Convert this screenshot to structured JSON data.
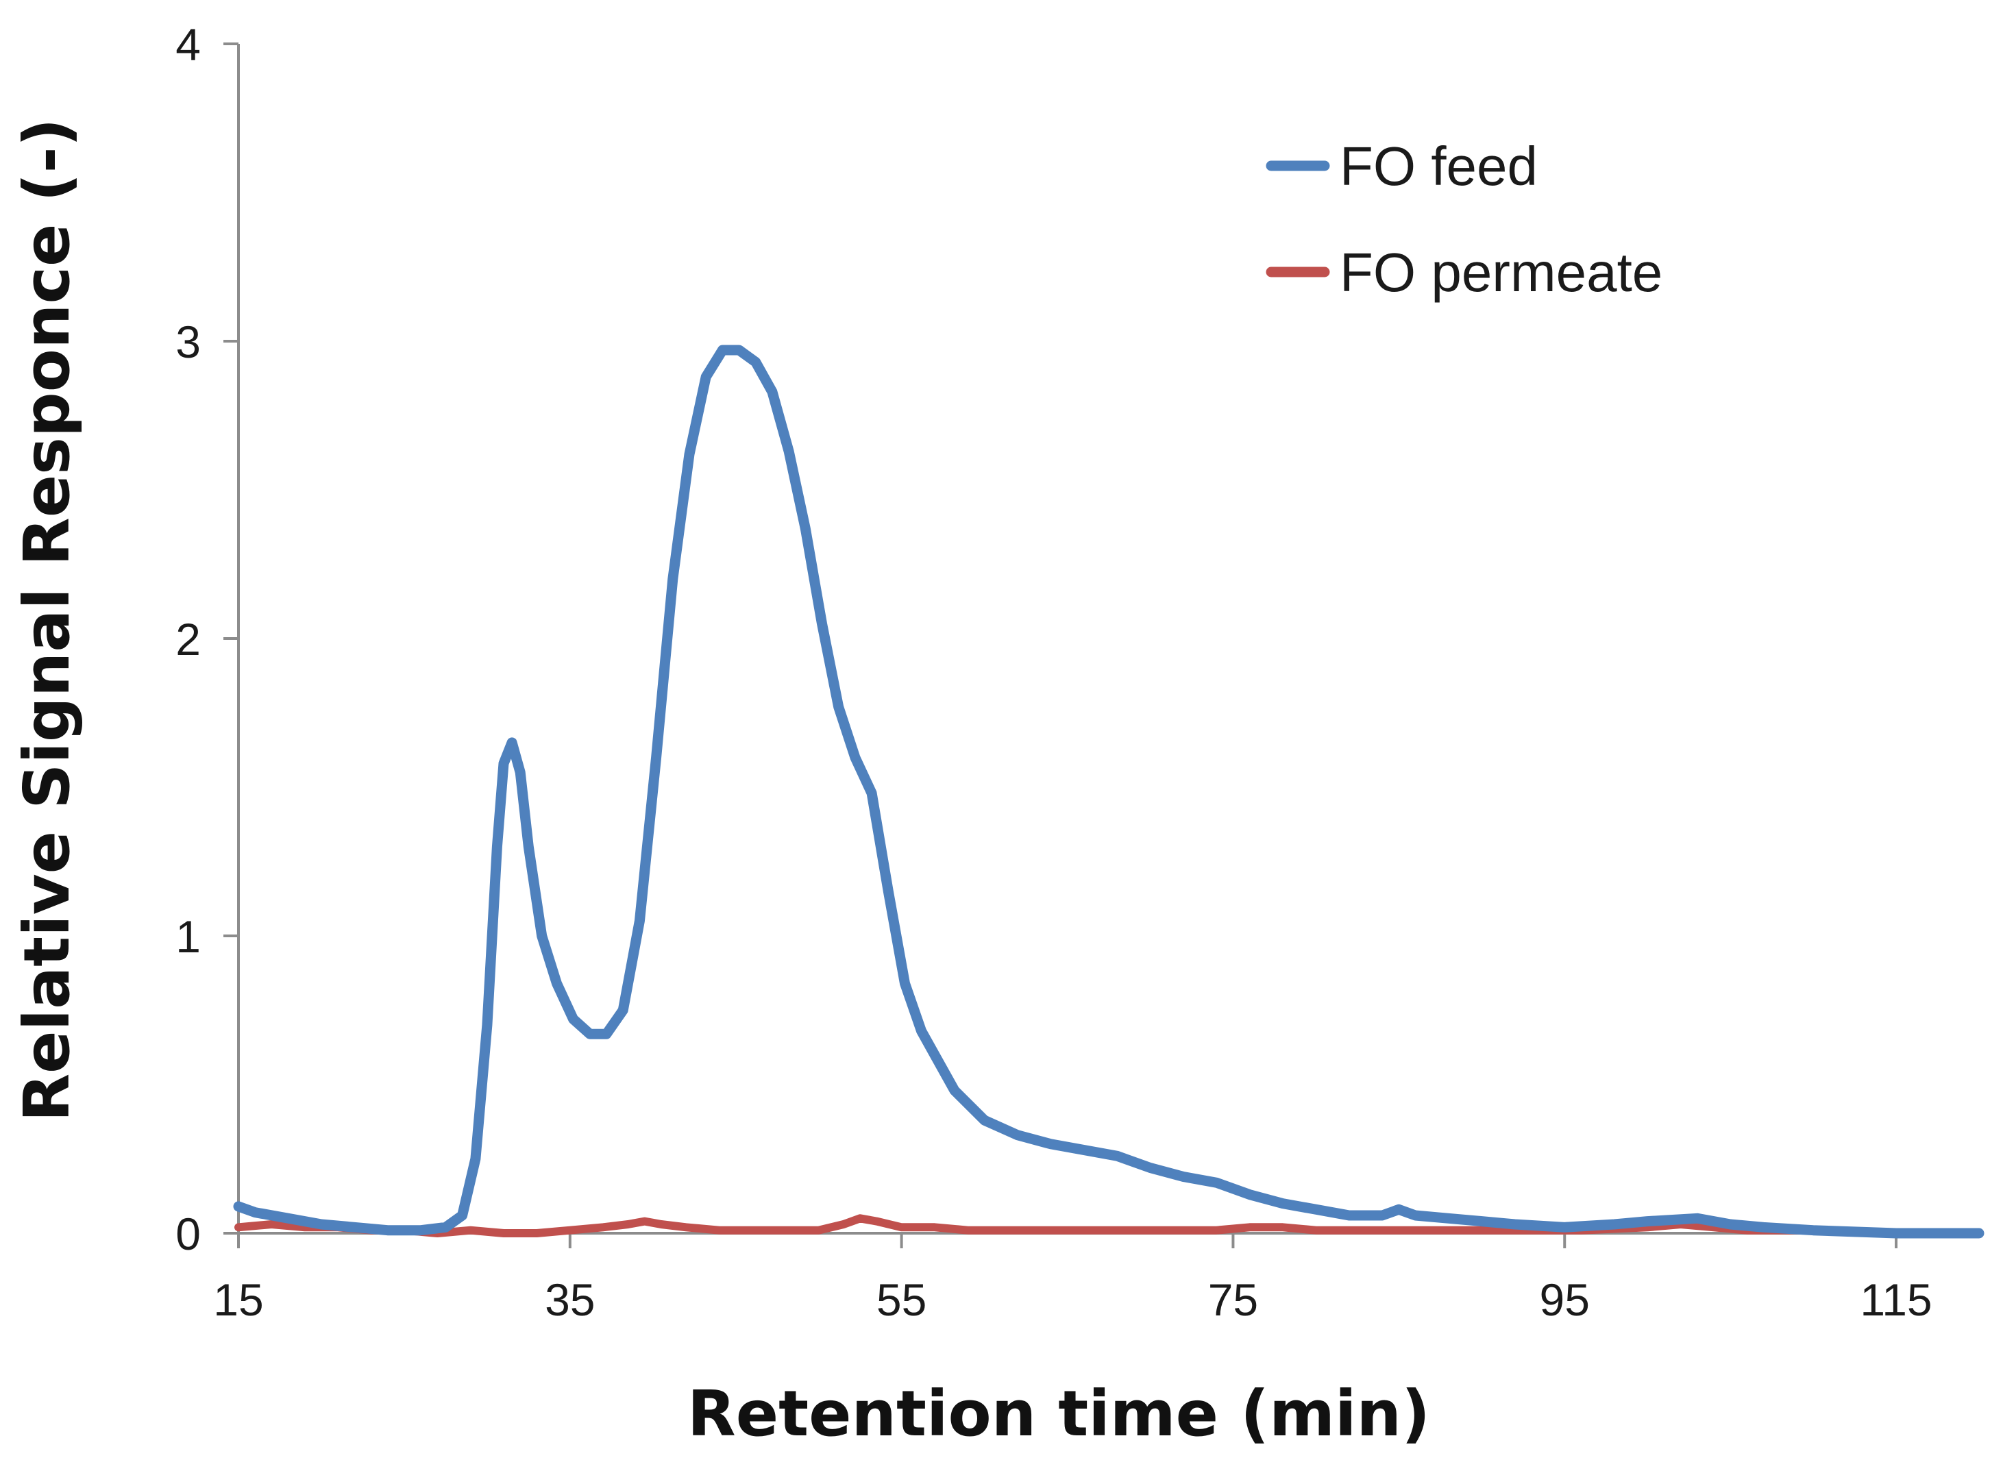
{
  "chart_data": {
    "type": "line",
    "title": "",
    "xlabel": "Retention time (min)",
    "ylabel": "Relative Signal Responce (-)",
    "xlim": [
      15,
      120
    ],
    "ylim": [
      0,
      4
    ],
    "x_ticks": [
      15,
      35,
      55,
      75,
      95,
      115
    ],
    "y_ticks": [
      0,
      1,
      2,
      3,
      4
    ],
    "x_tick_labels": [
      "15",
      "35",
      "55",
      "75",
      "95",
      "115"
    ],
    "y_tick_labels": [
      "0",
      "1",
      "2",
      "3",
      "4"
    ],
    "grid": false,
    "legend_position": "top-right",
    "series": [
      {
        "name": "FO feed",
        "color": "#4f81bd",
        "points": [
          [
            15,
            0.09
          ],
          [
            16,
            0.07
          ],
          [
            18,
            0.05
          ],
          [
            20,
            0.03
          ],
          [
            22,
            0.02
          ],
          [
            24,
            0.01
          ],
          [
            26,
            0.01
          ],
          [
            27.5,
            0.02
          ],
          [
            28.5,
            0.06
          ],
          [
            29.3,
            0.25
          ],
          [
            30,
            0.7
          ],
          [
            30.6,
            1.3
          ],
          [
            31,
            1.58
          ],
          [
            31.5,
            1.65
          ],
          [
            32,
            1.55
          ],
          [
            32.5,
            1.3
          ],
          [
            33.3,
            1.0
          ],
          [
            34.2,
            0.84
          ],
          [
            35.2,
            0.72
          ],
          [
            36.2,
            0.67
          ],
          [
            37.2,
            0.67
          ],
          [
            38.2,
            0.75
          ],
          [
            39.2,
            1.05
          ],
          [
            40.2,
            1.6
          ],
          [
            41.2,
            2.2
          ],
          [
            42.2,
            2.62
          ],
          [
            43.2,
            2.88
          ],
          [
            44.2,
            2.97
          ],
          [
            45.2,
            2.97
          ],
          [
            46.2,
            2.93
          ],
          [
            47.2,
            2.83
          ],
          [
            48.2,
            2.63
          ],
          [
            49.2,
            2.37
          ],
          [
            50.2,
            2.05
          ],
          [
            51.2,
            1.77
          ],
          [
            52.2,
            1.6
          ],
          [
            53.2,
            1.48
          ],
          [
            54.2,
            1.15
          ],
          [
            55.2,
            0.84
          ],
          [
            56.2,
            0.68
          ],
          [
            57.2,
            0.58
          ],
          [
            58.2,
            0.48
          ],
          [
            60,
            0.38
          ],
          [
            62,
            0.33
          ],
          [
            64,
            0.3
          ],
          [
            66,
            0.28
          ],
          [
            68,
            0.26
          ],
          [
            70,
            0.22
          ],
          [
            72,
            0.19
          ],
          [
            74,
            0.17
          ],
          [
            76,
            0.13
          ],
          [
            78,
            0.1
          ],
          [
            80,
            0.08
          ],
          [
            82,
            0.06
          ],
          [
            84,
            0.06
          ],
          [
            85,
            0.08
          ],
          [
            86,
            0.06
          ],
          [
            88,
            0.05
          ],
          [
            90,
            0.04
          ],
          [
            92,
            0.03
          ],
          [
            95,
            0.02
          ],
          [
            98,
            0.03
          ],
          [
            100,
            0.04
          ],
          [
            103,
            0.05
          ],
          [
            105,
            0.03
          ],
          [
            107,
            0.02
          ],
          [
            110,
            0.01
          ],
          [
            115,
            0.0
          ],
          [
            120,
            0.0
          ]
        ]
      },
      {
        "name": "FO permeate",
        "color": "#c0504d",
        "points": [
          [
            15,
            0.02
          ],
          [
            17,
            0.03
          ],
          [
            19,
            0.02
          ],
          [
            21,
            0.02
          ],
          [
            23,
            0.01
          ],
          [
            25,
            0.01
          ],
          [
            27,
            0.0
          ],
          [
            29,
            0.01
          ],
          [
            31,
            0.0
          ],
          [
            33,
            0.0
          ],
          [
            35,
            0.01
          ],
          [
            37,
            0.02
          ],
          [
            38.5,
            0.03
          ],
          [
            39.5,
            0.04
          ],
          [
            40.5,
            0.03
          ],
          [
            42,
            0.02
          ],
          [
            44,
            0.01
          ],
          [
            46,
            0.01
          ],
          [
            48,
            0.01
          ],
          [
            50,
            0.01
          ],
          [
            51.5,
            0.03
          ],
          [
            52.5,
            0.05
          ],
          [
            53.5,
            0.04
          ],
          [
            55,
            0.02
          ],
          [
            57,
            0.02
          ],
          [
            59,
            0.01
          ],
          [
            62,
            0.01
          ],
          [
            65,
            0.01
          ],
          [
            68,
            0.01
          ],
          [
            71,
            0.01
          ],
          [
            74,
            0.01
          ],
          [
            76,
            0.02
          ],
          [
            78,
            0.02
          ],
          [
            80,
            0.01
          ],
          [
            84,
            0.01
          ],
          [
            88,
            0.01
          ],
          [
            92,
            0.01
          ],
          [
            96,
            0.01
          ],
          [
            100,
            0.02
          ],
          [
            102,
            0.03
          ],
          [
            104,
            0.02
          ],
          [
            106,
            0.01
          ],
          [
            110,
            0.01
          ],
          [
            115,
            0.0
          ],
          [
            120,
            0.0
          ]
        ]
      }
    ]
  }
}
